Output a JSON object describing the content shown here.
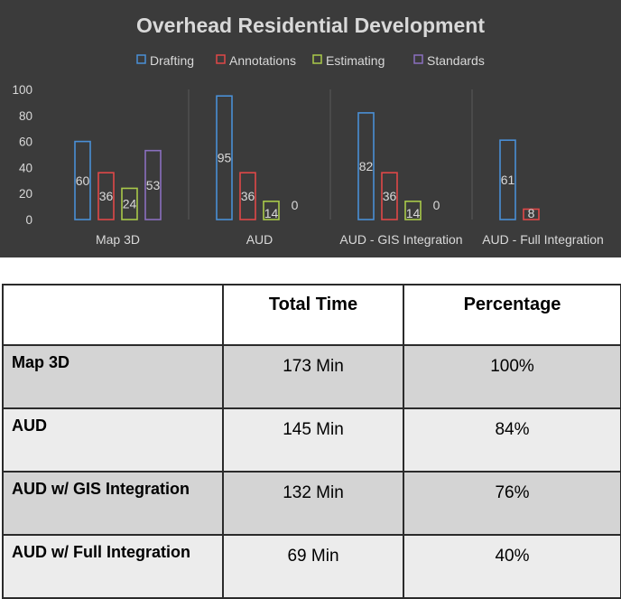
{
  "chart_data": {
    "type": "bar",
    "title": "Overhead Residential Development",
    "categories": [
      "Map 3D",
      "AUD",
      "AUD - GIS Integration",
      "AUD - Full Integration"
    ],
    "series": [
      {
        "name": "Drafting",
        "color": "#4a8fd6",
        "values": [
          60,
          95,
          82,
          61
        ],
        "labels": [
          "60",
          "95",
          "82",
          "61"
        ]
      },
      {
        "name": "Annotations",
        "color": "#e04848",
        "values": [
          36,
          36,
          36,
          8
        ],
        "labels": [
          "36",
          "36",
          "36",
          "8"
        ]
      },
      {
        "name": "Estimating",
        "color": "#a9c94a",
        "values": [
          24,
          14,
          14,
          null
        ],
        "labels": [
          "24",
          "14",
          "14",
          ""
        ]
      },
      {
        "name": "Standards",
        "color": "#8a6fbf",
        "values": [
          53,
          0,
          0,
          null
        ],
        "labels": [
          "53",
          "0",
          "0",
          ""
        ]
      }
    ],
    "yticks": [
      0,
      20,
      40,
      60,
      80,
      100
    ],
    "ylim": [
      0,
      100
    ],
    "xlabel": "",
    "ylabel": "",
    "legend_position": "top",
    "background": "#3b3b3b",
    "grid": "vertical category separators"
  },
  "table": {
    "headers": [
      "",
      "Total Time",
      "Percentage"
    ],
    "rows": [
      {
        "label": "Map 3D",
        "total_time": "173 Min",
        "percentage": "100%"
      },
      {
        "label": "AUD",
        "total_time": "145 Min",
        "percentage": "84%"
      },
      {
        "label": "AUD w/ GIS Integration",
        "total_time": "132 Min",
        "percentage": "76%"
      },
      {
        "label": "AUD w/ Full Integration",
        "total_time": "69 Min",
        "percentage": "40%"
      }
    ]
  }
}
